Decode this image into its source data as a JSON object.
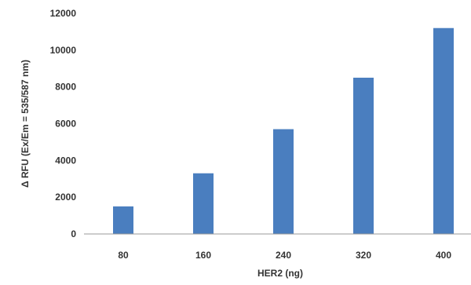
{
  "chart_data": {
    "type": "bar",
    "categories": [
      "80",
      "160",
      "240",
      "320",
      "400"
    ],
    "values": [
      1500,
      3300,
      5700,
      8500,
      11200
    ],
    "xlabel": "HER2 (ng)",
    "ylabel": "Δ RFU (Ex/Em = 535/587 nm)",
    "ylim": [
      0,
      12000
    ],
    "yticks": [
      "0",
      "2000",
      "4000",
      "6000",
      "8000",
      "10000",
      "12000"
    ],
    "grid": false,
    "legend": "none",
    "bar_color": "#4a7ebf"
  }
}
